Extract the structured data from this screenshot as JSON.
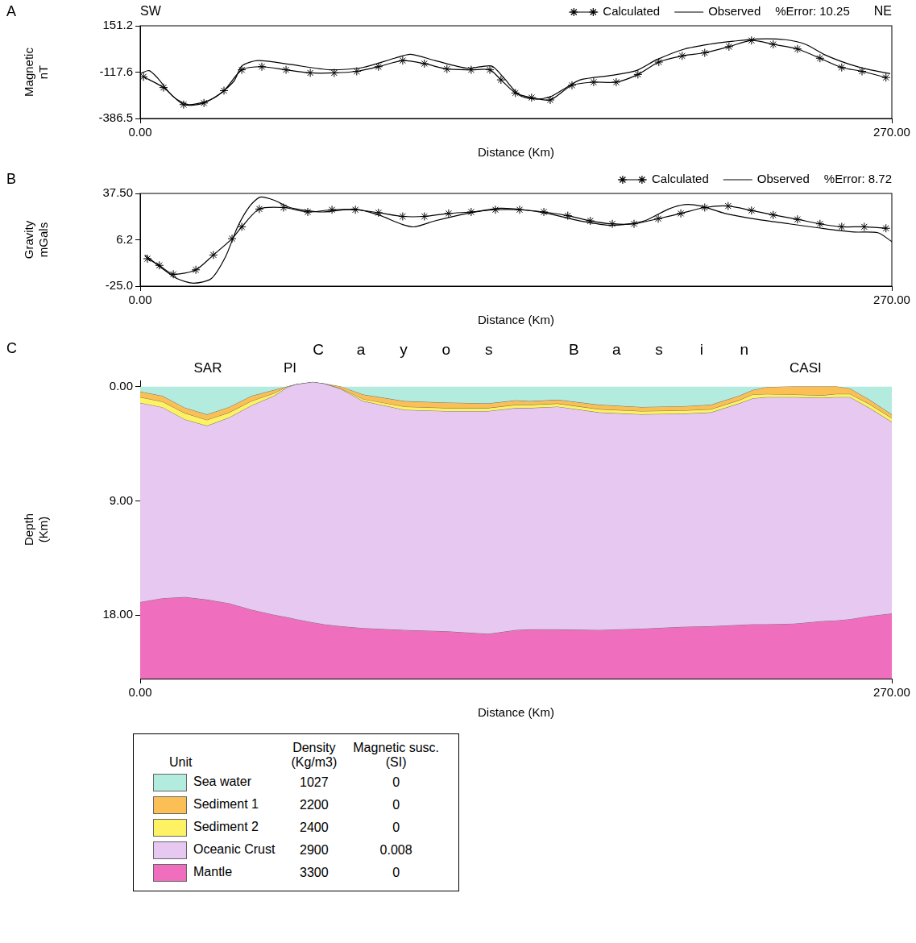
{
  "chart_data": [
    {
      "type": "line",
      "panel": "A",
      "direction_labels": [
        "SW",
        "NE"
      ],
      "xlabel": "Distance (Km)",
      "ylabel": [
        "Magnetic",
        "nT"
      ],
      "xlim": [
        0,
        270
      ],
      "xticks": [
        {
          "value": 0,
          "label": "0.00"
        },
        {
          "value": 270,
          "label": "270.00"
        }
      ],
      "ylim": [
        -386.5,
        151.2
      ],
      "yticks": [
        -386.5,
        -117.6,
        151.2
      ],
      "grid": false,
      "legend": "top right",
      "annotation": "%Error: 10.25",
      "series": [
        {
          "name": "Calculated",
          "color": "#000000",
          "marker": "star",
          "line_style": "solid",
          "x": [
            1.2,
            8.4,
            15.6,
            22.9,
            30.1,
            36.5,
            43.7,
            52.4,
            61.1,
            69.7,
            77.8,
            85.6,
            94.3,
            102.1,
            110.2,
            118.9,
            125.6,
            129.6,
            134.8,
            140.6,
            147.3,
            155.1,
            162.9,
            171.0,
            178.8,
            186.3,
            194.7,
            202.8,
            211.5,
            219.6,
            227.4,
            236.1,
            244.2,
            252.0,
            259.3,
            267.9
          ],
          "values": [
            -144.5,
            -207.2,
            -305.8,
            -296.8,
            -225.1,
            -104.2,
            -86.2,
            -104.2,
            -122.1,
            -122.1,
            -113.1,
            -86.2,
            -50.4,
            -68.3,
            -99.7,
            -104.2,
            -104.2,
            -162.4,
            -238.6,
            -265.4,
            -278.9,
            -193.8,
            -175.8,
            -175.8,
            -131.0,
            -59.4,
            -23.5,
            -5.6,
            30.2,
            66.1,
            43.7,
            16.8,
            -37.0,
            -90.7,
            -113.1,
            -149.0
          ]
        },
        {
          "name": "Observed",
          "color": "#000000",
          "marker": "none",
          "line_style": "solid",
          "x": [
            0,
            3.2,
            6.1,
            11.9,
            17.7,
            26.3,
            33.6,
            36.5,
            42.2,
            53.8,
            68.3,
            79.9,
            91.4,
            97.2,
            105.9,
            117.5,
            126.2,
            130.5,
            136.3,
            142.1,
            147.3,
            152.2,
            158.0,
            169.6,
            178.2,
            185.5,
            195.6,
            204.3,
            213.0,
            221.6,
            231.8,
            239.0,
            246.2,
            254.9,
            262.2,
            269.4
          ],
          "values": [
            -126.6,
            -108.6,
            -149.0,
            -261.0,
            -305.8,
            -269.9,
            -171.4,
            -81.8,
            -50.4,
            -72.8,
            -104.2,
            -90.7,
            -37.0,
            -14.6,
            -50.4,
            -95.2,
            -81.8,
            -149.0,
            -252.0,
            -274.4,
            -261.0,
            -216.2,
            -162.4,
            -135.5,
            -108.6,
            -45.9,
            16.8,
            43.7,
            61.6,
            75.0,
            70.6,
            43.7,
            -19.0,
            -72.8,
            -104.2,
            -126.6
          ]
        }
      ]
    },
    {
      "type": "line",
      "panel": "B",
      "xlabel": "Distance (Km)",
      "ylabel": [
        "Gravity",
        "mGals"
      ],
      "xlim": [
        0,
        270
      ],
      "xticks": [
        {
          "value": 0,
          "label": "0.00"
        },
        {
          "value": 270,
          "label": "270.00"
        }
      ],
      "ylim": [
        -25,
        37.5
      ],
      "yticks": [
        {
          "value": -25,
          "label": "-25.0"
        },
        6.2,
        {
          "value": 37.5,
          "label": "37.50"
        }
      ],
      "grid": false,
      "legend": "top right",
      "annotation": "%Error: 8.72",
      "series": [
        {
          "name": "Calculated",
          "color": "#000000",
          "marker": "star",
          "line_style": "solid",
          "x": [
            2.6,
            6.9,
            11.9,
            20.0,
            26.3,
            33.0,
            36.5,
            42.8,
            51.5,
            60.2,
            68.9,
            77.3,
            85.6,
            94.3,
            102.1,
            110.8,
            118.9,
            127.6,
            136.3,
            145.0,
            153.6,
            161.7,
            169.6,
            177.4,
            186.1,
            194.2,
            202.8,
            211.2,
            219.6,
            227.4,
            236.1,
            244.2,
            252.0,
            260.1,
            267.9
          ],
          "values": [
            -6.5,
            -11.0,
            -17.0,
            -14.0,
            -4.0,
            7.0,
            15.0,
            27.0,
            28.0,
            25.0,
            26.5,
            26.5,
            24.5,
            22.0,
            22.0,
            24.0,
            25.0,
            26.5,
            26.5,
            25.0,
            22.5,
            19.0,
            17.0,
            17.0,
            20.5,
            24.0,
            28.0,
            29.0,
            26.0,
            23.0,
            20.0,
            17.0,
            15.0,
            15.0,
            14.0
          ]
        },
        {
          "name": "Observed",
          "color": "#000000",
          "marker": "none",
          "line_style": "solid",
          "x": [
            1.7,
            7.5,
            13.3,
            19.1,
            25.5,
            30.7,
            35.0,
            39.4,
            43.1,
            48.0,
            53.8,
            65.4,
            77.0,
            85.6,
            94.3,
            98.7,
            105.9,
            117.5,
            129.1,
            137.7,
            146.4,
            158.0,
            169.6,
            181.1,
            189.8,
            195.6,
            201.4,
            210.1,
            221.6,
            233.2,
            244.8,
            256.4,
            265.0,
            270.0
          ],
          "values": [
            -4.0,
            -12.5,
            -20.0,
            -23.0,
            -20.0,
            -5.0,
            15.0,
            29.0,
            35.0,
            33.0,
            28.0,
            25.0,
            27.0,
            23.0,
            16.5,
            15.0,
            19.0,
            24.0,
            27.5,
            26.5,
            24.0,
            19.0,
            16.0,
            19.0,
            27.0,
            30.0,
            29.0,
            24.0,
            20.0,
            17.0,
            14.0,
            11.5,
            11.0,
            5.0
          ]
        }
      ]
    },
    {
      "type": "cross_section",
      "panel": "C",
      "xlabel": "Distance (Km)",
      "ylabel": [
        "Depth",
        "(Km)"
      ],
      "xlim": [
        0,
        270
      ],
      "xticks": [
        {
          "value": 0,
          "label": "0.00"
        },
        {
          "value": 270,
          "label": "270.00"
        }
      ],
      "ylim": [
        -0.5,
        23
      ],
      "yticks": [
        {
          "value": 0,
          "label": "0.00"
        },
        {
          "value": 9,
          "label": "9.00"
        },
        {
          "value": 18,
          "label": "18.00"
        }
      ],
      "grid": false,
      "labels": [
        {
          "text": "SAR",
          "x": 24.3
        },
        {
          "text": "PI",
          "x": 53.8
        },
        {
          "text": "CASI",
          "x": 239
        }
      ],
      "region_label": {
        "text": "Cayos Basin",
        "x": [
          64,
          217
        ]
      },
      "table_headers": [
        "Unit",
        [
          "Density",
          "(Kg/m3)"
        ],
        [
          "Magnetic susc.",
          "(SI)"
        ]
      ],
      "x": [
        0,
        8,
        16,
        24,
        32,
        40,
        48,
        53,
        56,
        62,
        66,
        72,
        80,
        95,
        110,
        125,
        135,
        140,
        150,
        165,
        180,
        195,
        205,
        215,
        220,
        225,
        235,
        245,
        250,
        255,
        262,
        270
      ],
      "layers": [
        {
          "name": "Sea water",
          "color": "#b3ebde",
          "density": 1027,
          "magnetic_susceptibility": 0,
          "top": 0,
          "base": [
            0.41,
            0.75,
            1.68,
            2.21,
            1.63,
            0.75,
            0.29,
            0.0,
            -0.17,
            -0.35,
            -0.23,
            0.0,
            0.64,
            1.16,
            1.28,
            1.34,
            1.1,
            1.16,
            1.05,
            1.45,
            1.63,
            1.57,
            1.45,
            0.75,
            0.29,
            0.06,
            0.0,
            0.0,
            0.0,
            0.17,
            1.05,
            2.21
          ]
        },
        {
          "name": "Sediment 1",
          "color": "#fbbf55",
          "density": 2200,
          "magnetic_susceptibility": 0,
          "base": [
            0.85,
            1.2,
            2.1,
            2.65,
            2.05,
            1.15,
            0.55,
            0.0,
            -0.17,
            -0.35,
            -0.23,
            0.15,
            1.0,
            1.6,
            1.7,
            1.7,
            1.45,
            1.45,
            1.35,
            1.8,
            1.95,
            1.9,
            1.8,
            1.1,
            0.65,
            0.6,
            0.65,
            0.7,
            0.6,
            0.6,
            1.4,
            2.5
          ]
        },
        {
          "name": "Sediment 2",
          "color": "#fdf263",
          "density": 2400,
          "magnetic_susceptibility": 0,
          "base": [
            1.3,
            1.65,
            2.6,
            3.1,
            2.45,
            1.5,
            0.75,
            0.05,
            -0.17,
            -0.35,
            -0.23,
            0.2,
            1.15,
            1.85,
            1.95,
            1.95,
            1.7,
            1.7,
            1.6,
            2.05,
            2.2,
            2.15,
            2.05,
            1.35,
            0.95,
            0.85,
            0.85,
            0.9,
            0.85,
            0.85,
            1.7,
            2.8
          ]
        },
        {
          "name": "Oceanic Crust",
          "color": "#e6c8f0",
          "density": 2900,
          "magnetic_susceptibility": 0.008,
          "base": [
            17.0,
            16.7,
            16.6,
            16.8,
            17.1,
            17.6,
            18.0,
            18.2,
            18.35,
            18.6,
            18.75,
            18.9,
            19.05,
            19.2,
            19.3,
            19.5,
            19.2,
            19.15,
            19.15,
            19.2,
            19.1,
            18.95,
            18.9,
            18.8,
            18.75,
            18.75,
            18.7,
            18.5,
            18.45,
            18.35,
            18.1,
            17.9
          ]
        },
        {
          "name": "Mantle",
          "color": "#f06ebe",
          "density": 3300,
          "magnetic_susceptibility": 0
        }
      ]
    }
  ]
}
